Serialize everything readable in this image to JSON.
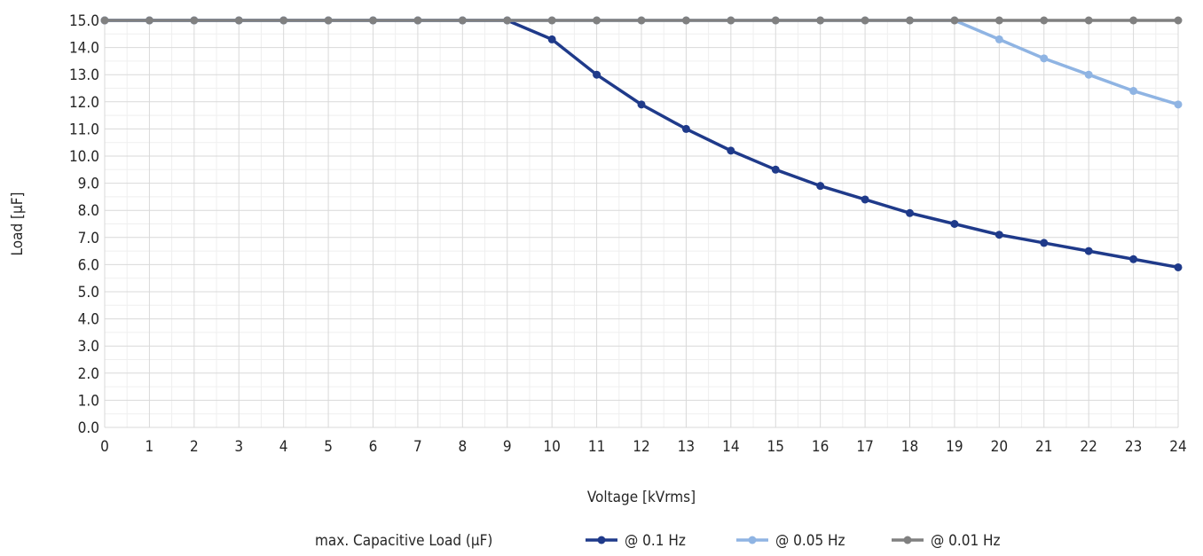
{
  "chart_data": {
    "type": "line",
    "title": "",
    "xlabel": "Voltage [kVrms]",
    "ylabel": "Load [µF]",
    "x": [
      0,
      1,
      2,
      3,
      4,
      5,
      6,
      7,
      8,
      9,
      10,
      11,
      12,
      13,
      14,
      15,
      16,
      17,
      18,
      19,
      20,
      21,
      22,
      23,
      24
    ],
    "xlim": [
      0,
      24
    ],
    "ylim": [
      0,
      15
    ],
    "x_ticks": [
      "0",
      "1",
      "2",
      "3",
      "4",
      "5",
      "6",
      "7",
      "8",
      "9",
      "10",
      "11",
      "12",
      "13",
      "14",
      "15",
      "16",
      "17",
      "18",
      "19",
      "20",
      "21",
      "22",
      "23",
      "24"
    ],
    "y_ticks": [
      "0.0",
      "1.0",
      "2.0",
      "3.0",
      "4.0",
      "5.0",
      "6.0",
      "7.0",
      "8.0",
      "9.0",
      "10.0",
      "11.0",
      "12.0",
      "13.0",
      "14.0",
      "15.0"
    ],
    "grid": true,
    "minor_grid": true,
    "legend_position": "bottom",
    "legend_title": "max. Capacitive Load (µF)",
    "series": [
      {
        "name": "@ 0.1 Hz",
        "color": "#1f3a8a",
        "values": [
          15.0,
          15.0,
          15.0,
          15.0,
          15.0,
          15.0,
          15.0,
          15.0,
          15.0,
          15.0,
          14.3,
          13.0,
          11.9,
          11.0,
          10.2,
          9.5,
          8.9,
          8.4,
          7.9,
          7.5,
          7.1,
          6.8,
          6.5,
          6.2,
          5.9
        ]
      },
      {
        "name": "@ 0.05 Hz",
        "color": "#8fb4e3",
        "values": [
          15.0,
          15.0,
          15.0,
          15.0,
          15.0,
          15.0,
          15.0,
          15.0,
          15.0,
          15.0,
          15.0,
          15.0,
          15.0,
          15.0,
          15.0,
          15.0,
          15.0,
          15.0,
          15.0,
          15.0,
          14.3,
          13.6,
          13.0,
          12.4,
          11.9
        ]
      },
      {
        "name": "@ 0.01 Hz",
        "color": "#808080",
        "values": [
          15.0,
          15.0,
          15.0,
          15.0,
          15.0,
          15.0,
          15.0,
          15.0,
          15.0,
          15.0,
          15.0,
          15.0,
          15.0,
          15.0,
          15.0,
          15.0,
          15.0,
          15.0,
          15.0,
          15.0,
          15.0,
          15.0,
          15.0,
          15.0,
          15.0
        ]
      }
    ]
  }
}
